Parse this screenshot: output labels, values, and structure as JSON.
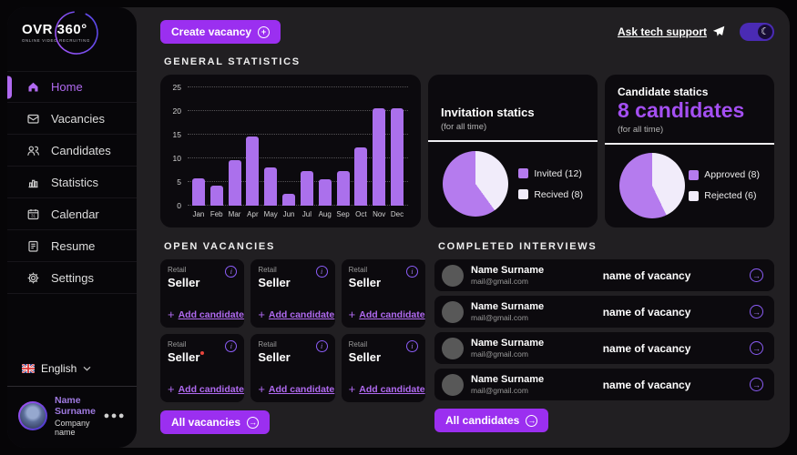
{
  "colors": {
    "accent": "#9b2ff0",
    "accent_light": "#b06af0",
    "bar": "#ab70ec",
    "pie_purple": "#b57bee",
    "pie_white": "#f1ecfa",
    "headline_purple": "#a44ff2"
  },
  "sidebar": {
    "logo": {
      "title": "OVR 360°",
      "subtitle": "ONLINE VIDEO RECRUITING"
    },
    "items": [
      {
        "label": "Home",
        "icon": "home-icon",
        "active": true
      },
      {
        "label": "Vacancies",
        "icon": "vacancies-icon",
        "active": false
      },
      {
        "label": "Candidates",
        "icon": "candidates-icon",
        "active": false
      },
      {
        "label": "Statistics",
        "icon": "statistics-icon",
        "active": false
      },
      {
        "label": "Calendar",
        "icon": "calendar-icon",
        "active": false
      },
      {
        "label": "Resume",
        "icon": "resume-icon",
        "active": false
      },
      {
        "label": "Settings",
        "icon": "settings-icon",
        "active": false
      }
    ],
    "language": {
      "label": "English",
      "flag": "uk-flag-icon"
    },
    "profile": {
      "name": "Name Surname",
      "company": "Company name"
    }
  },
  "topbar": {
    "create_vacancy_label": "Create vacancy",
    "support_label": "Ask tech support"
  },
  "sections": {
    "general_statistics": "GENERAL STATISTICS",
    "open_vacancies": "OPEN VACANCIES",
    "completed_interviews": "COMPLETED INTERVIEWS"
  },
  "chart_data": [
    {
      "type": "bar",
      "title": "GENERAL STATISTICS",
      "categories": [
        "Jan",
        "Feb",
        "Mar",
        "Apr",
        "May",
        "Jun",
        "Jul",
        "Aug",
        "Sep",
        "Oct",
        "Nov",
        "Dec"
      ],
      "values": [
        5.7,
        4.3,
        9.7,
        14.7,
        8,
        2.5,
        7.3,
        5.6,
        7.3,
        12.3,
        20.5,
        20.5
      ],
      "xlabel": "",
      "ylabel": "",
      "ylim": [
        0,
        25
      ],
      "yticks": [
        0,
        5,
        10,
        15,
        20,
        25
      ],
      "grid": "horizontal dotted",
      "legend": "none",
      "bar_color": "#ab70ec"
    },
    {
      "type": "pie",
      "title": "Invitation statics",
      "labels": [
        "Invited",
        "Recived"
      ],
      "values": [
        12,
        8
      ],
      "colors": [
        "#b57bee",
        "#f1ecfa"
      ],
      "legend_position": "right"
    },
    {
      "type": "pie",
      "title": "Candidate statics",
      "labels": [
        "Approved",
        "Rejected"
      ],
      "values": [
        8,
        6
      ],
      "colors": [
        "#b57bee",
        "#f1ecfa"
      ],
      "legend_position": "right"
    }
  ],
  "stats": {
    "invitation": {
      "title": "Invitation statics",
      "subtitle": "(for all time)",
      "legend": [
        {
          "label": "Invited (12)",
          "color": "#b57bee"
        },
        {
          "label": "Recived (8)",
          "color": "#f1ecfa"
        }
      ]
    },
    "candidate": {
      "title": "Candidate statics",
      "headline": "8 candidates",
      "subtitle": "(for all time)",
      "legend": [
        {
          "label": "Approved (8)",
          "color": "#b57bee"
        },
        {
          "label": "Rejected (6)",
          "color": "#f1ecfa"
        }
      ]
    }
  },
  "vacancies": {
    "all_label": "All vacancies",
    "cards": [
      {
        "category": "Retail",
        "title": "Seller",
        "add_label": "Add candidate",
        "has_alert": false
      },
      {
        "category": "Retail",
        "title": "Seller",
        "add_label": "Add candidate",
        "has_alert": false
      },
      {
        "category": "Retail",
        "title": "Seller",
        "add_label": "Add candidate",
        "has_alert": false
      },
      {
        "category": "Retail",
        "title": "Seller",
        "add_label": "Add candidate",
        "has_alert": true
      },
      {
        "category": "Retail",
        "title": "Seller",
        "add_label": "Add candidate",
        "has_alert": false
      },
      {
        "category": "Retail",
        "title": "Seller",
        "add_label": "Add candidate",
        "has_alert": false
      }
    ]
  },
  "interviews": {
    "all_label": "All candidates",
    "rows": [
      {
        "name": "Name Surname",
        "email": "mail@gmail.com",
        "vacancy": "name of vacancy"
      },
      {
        "name": "Name Surname",
        "email": "mail@gmail.com",
        "vacancy": "name of vacancy"
      },
      {
        "name": "Name Surname",
        "email": "mail@gmail.com",
        "vacancy": "name of vacancy"
      },
      {
        "name": "Name Surname",
        "email": "mail@gmail.com",
        "vacancy": "name of vacancy"
      }
    ]
  }
}
